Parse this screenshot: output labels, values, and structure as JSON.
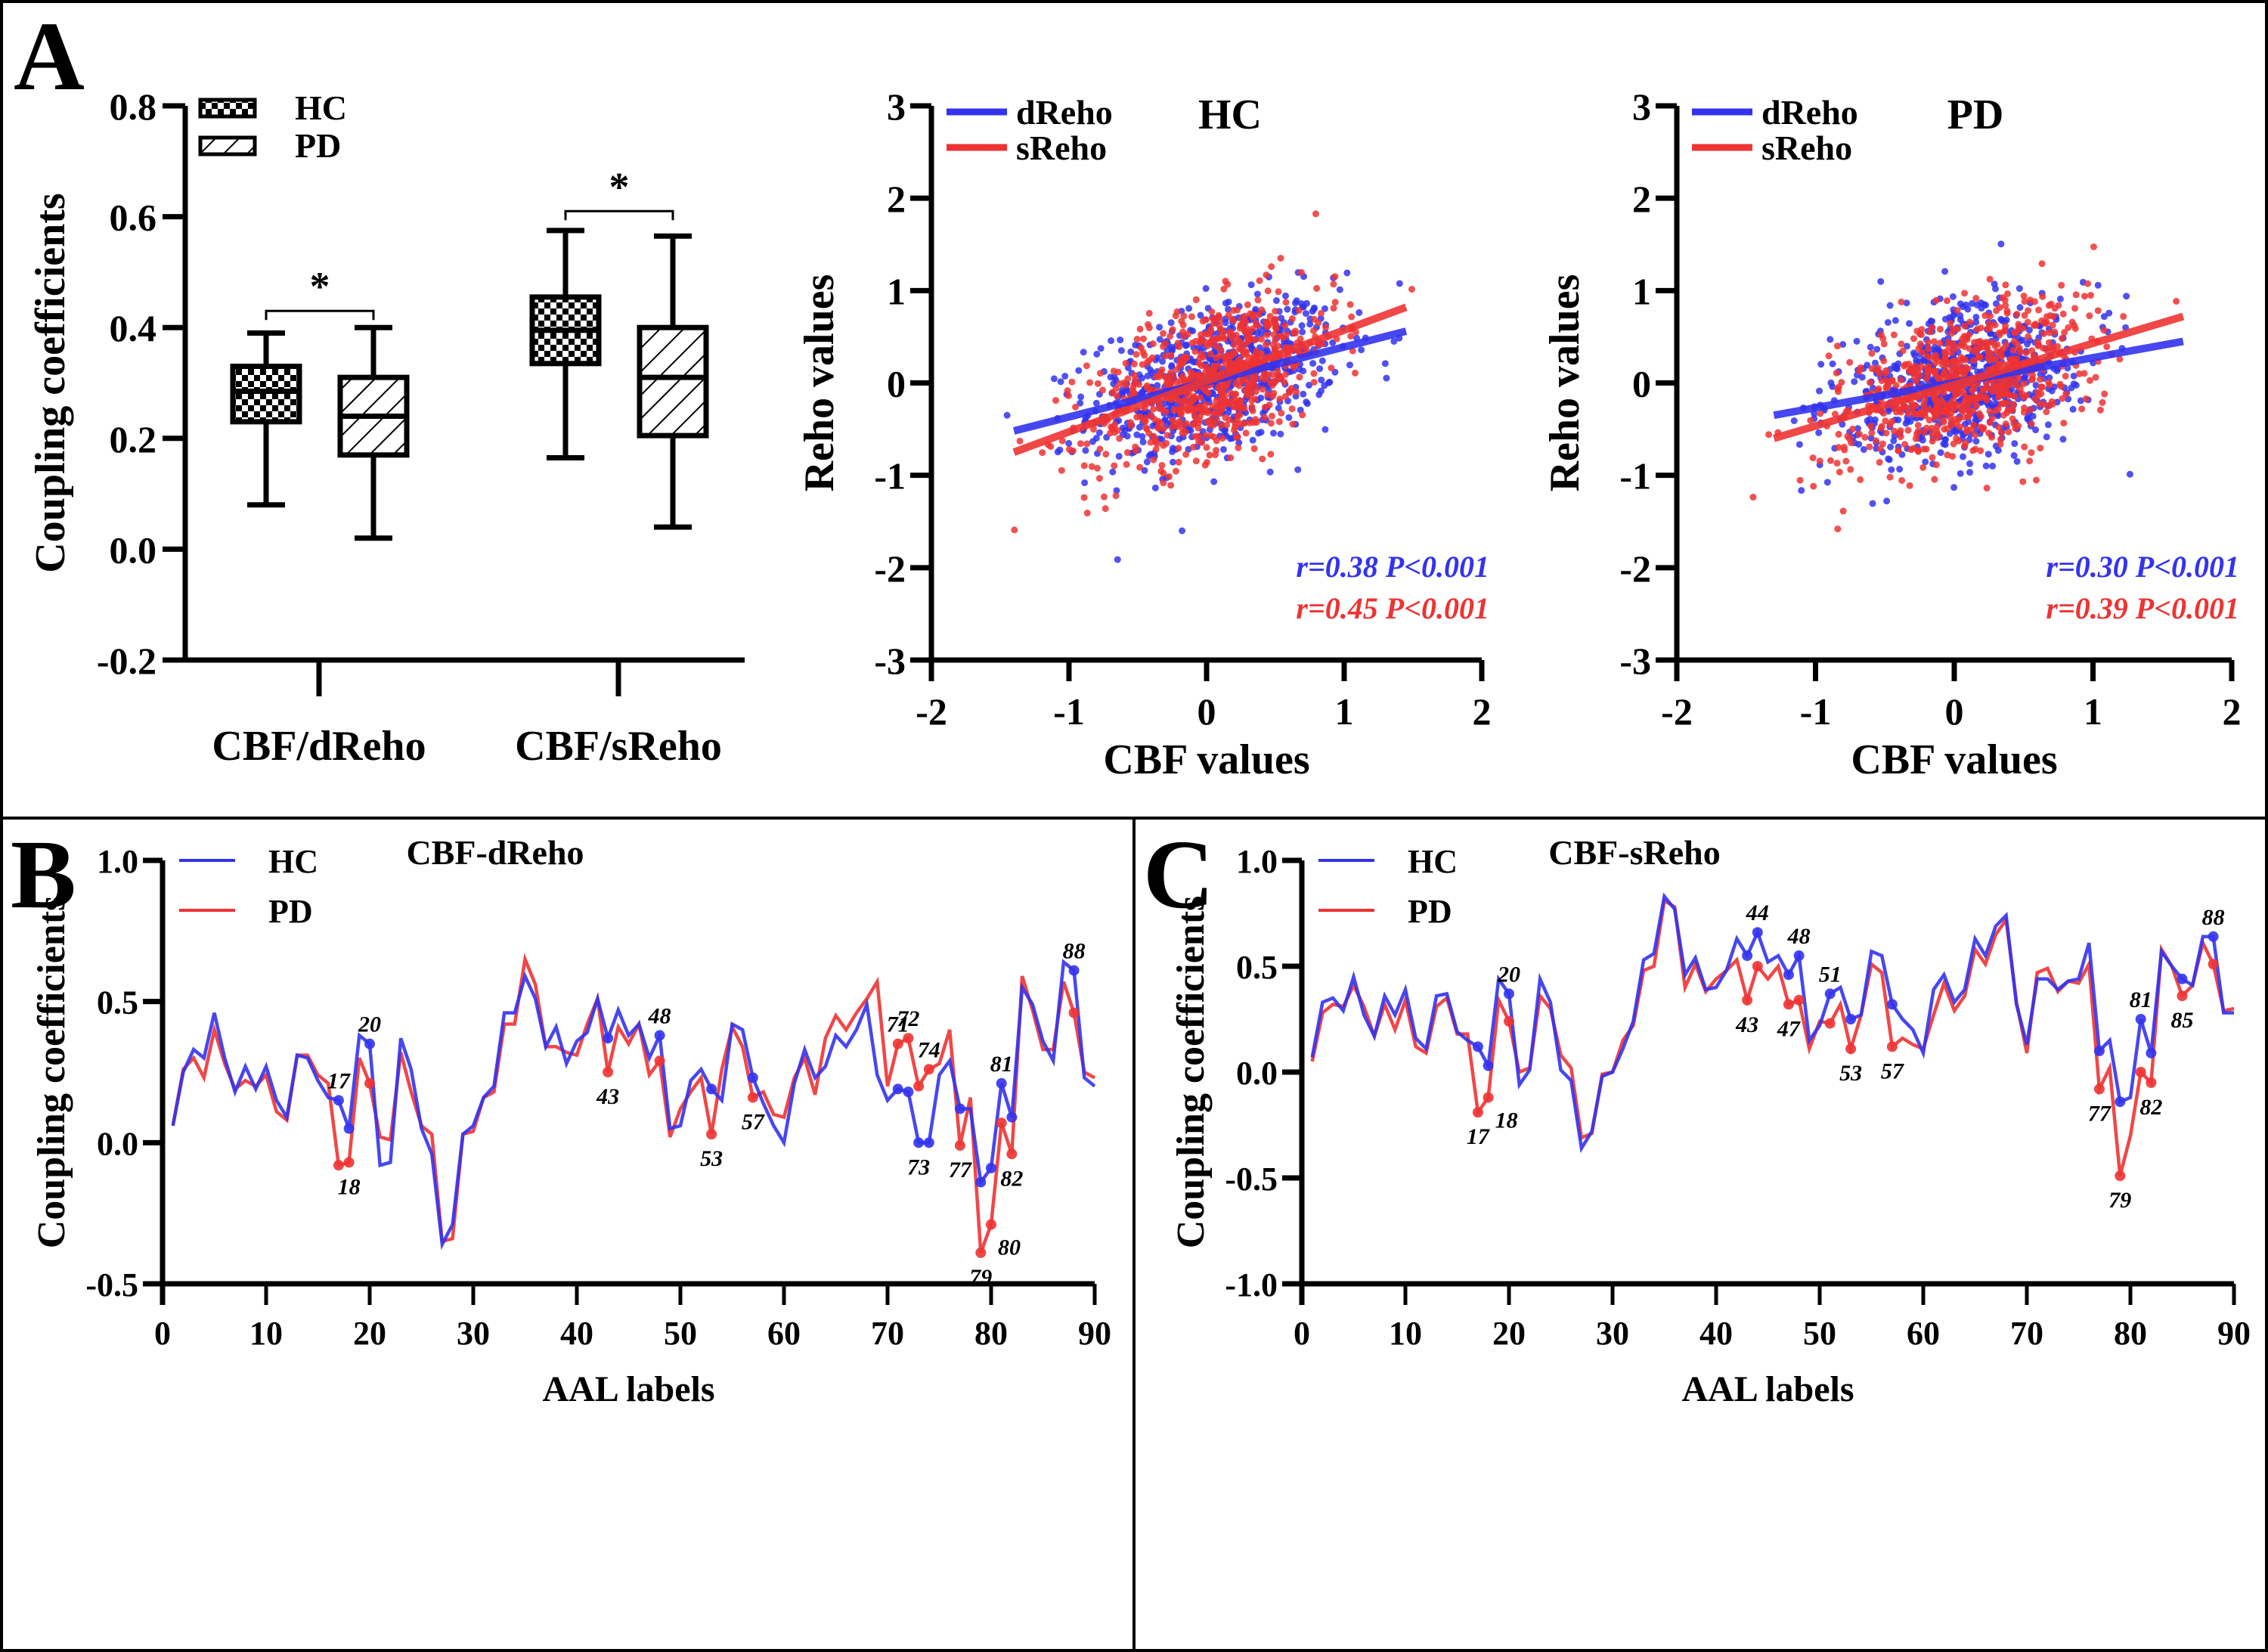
{
  "panels": {
    "A": {
      "letter": "A"
    },
    "B": {
      "letter": "B"
    },
    "C": {
      "letter": "C"
    }
  },
  "chart_data": [
    {
      "id": "A-box",
      "type": "box",
      "ylabel": "Coupling coefficients",
      "yticks": [
        "0.8",
        "0.6",
        "0.4",
        "0.2",
        "0.0",
        "-0.2"
      ],
      "ylim": [
        -0.2,
        0.8
      ],
      "categories": [
        "CBF/dReho",
        "CBF/sReho"
      ],
      "legend": [
        {
          "name": "HC",
          "pattern": "checker"
        },
        {
          "name": "PD",
          "pattern": "hatch"
        }
      ],
      "legend_position": "top-left",
      "significance": "*",
      "boxes": [
        {
          "category": "CBF/dReho",
          "group": "HC",
          "min": 0.08,
          "q1": 0.23,
          "median": 0.285,
          "q3": 0.33,
          "max": 0.39
        },
        {
          "category": "CBF/dReho",
          "group": "PD",
          "min": 0.02,
          "q1": 0.17,
          "median": 0.24,
          "q3": 0.31,
          "max": 0.4
        },
        {
          "category": "CBF/sReho",
          "group": "HC",
          "min": 0.165,
          "q1": 0.335,
          "median": 0.395,
          "q3": 0.455,
          "max": 0.575
        },
        {
          "category": "CBF/sReho",
          "group": "PD",
          "min": 0.04,
          "q1": 0.205,
          "median": 0.31,
          "q3": 0.4,
          "max": 0.565
        }
      ]
    },
    {
      "id": "A-scatter-HC",
      "type": "scatter",
      "title": "HC",
      "xlabel": "CBF values",
      "ylabel": "Reho values",
      "xlim": [
        -2,
        2
      ],
      "ylim": [
        -3,
        3
      ],
      "xticks": [
        "-2",
        "-1",
        "0",
        "1",
        "2"
      ],
      "yticks": [
        "3",
        "2",
        "1",
        "0",
        "-1",
        "-2",
        "-3"
      ],
      "legend_position": "top-left",
      "series": [
        {
          "name": "dReho",
          "color": "#3333ee",
          "fit": {
            "x": [
              -1.4,
              1.45
            ],
            "y": [
              -0.52,
              0.56
            ]
          },
          "stat": "r=0.38 P<0.001",
          "r": 0.38,
          "sd_x": 0.5,
          "sd_y": 0.5
        },
        {
          "name": "sReho",
          "color": "#ee3333",
          "fit": {
            "x": [
              -1.4,
              1.45
            ],
            "y": [
              -0.75,
              0.82
            ]
          },
          "stat": "r=0.45 P<0.001",
          "r": 0.45,
          "sd_x": 0.5,
          "sd_y": 0.55
        }
      ],
      "n_points_per_series": 700
    },
    {
      "id": "A-scatter-PD",
      "type": "scatter",
      "title": "PD",
      "xlabel": "CBF values",
      "ylabel": "Reho values",
      "xlim": [
        -2,
        2
      ],
      "ylim": [
        -3,
        3
      ],
      "xticks": [
        "-2",
        "-1",
        "0",
        "1",
        "2"
      ],
      "yticks": [
        "3",
        "2",
        "1",
        "0",
        "-1",
        "-2",
        "-3"
      ],
      "legend_position": "top-left",
      "series": [
        {
          "name": "dReho",
          "color": "#3333ee",
          "fit": {
            "x": [
              -1.3,
              1.65
            ],
            "y": [
              -0.35,
              0.45
            ]
          },
          "stat": "r=0.30 P<0.001",
          "r": 0.3,
          "sd_x": 0.5,
          "sd_y": 0.5
        },
        {
          "name": "sReho",
          "color": "#ee3333",
          "fit": {
            "x": [
              -1.3,
              1.65
            ],
            "y": [
              -0.6,
              0.72
            ]
          },
          "stat": "r=0.39 P<0.001",
          "r": 0.39,
          "sd_x": 0.5,
          "sd_y": 0.55
        }
      ],
      "n_points_per_series": 700
    },
    {
      "id": "B-line",
      "type": "line",
      "title": "CBF-dReho",
      "xlabel": "AAL labels",
      "ylabel": "Coupling coefficients",
      "xlim": [
        0,
        90
      ],
      "ylim": [
        -0.5,
        1.0
      ],
      "xticks": [
        "0",
        "10",
        "20",
        "30",
        "40",
        "50",
        "60",
        "70",
        "80",
        "90"
      ],
      "yticks": [
        "1.0",
        "0.5",
        "0.0",
        "-0.5"
      ],
      "legend_position": "top-left",
      "series": [
        {
          "name": "HC",
          "color": "#3333ee",
          "values": [
            0.06,
            0.25,
            0.33,
            0.3,
            0.46,
            0.3,
            0.18,
            0.27,
            0.19,
            0.27,
            0.15,
            0.09,
            0.31,
            0.3,
            0.22,
            0.16,
            0.15,
            0.05,
            0.38,
            0.35,
            -0.08,
            -0.07,
            0.37,
            0.26,
            0.05,
            -0.04,
            -0.36,
            -0.29,
            0.03,
            0.06,
            0.16,
            0.2,
            0.46,
            0.46,
            0.59,
            0.51,
            0.34,
            0.41,
            0.28,
            0.36,
            0.39,
            0.51,
            0.37,
            0.47,
            0.38,
            0.42,
            0.3,
            0.38,
            0.05,
            0.06,
            0.22,
            0.26,
            0.19,
            0.15,
            0.42,
            0.4,
            0.23,
            0.14,
            0.06,
            0.0,
            0.21,
            0.33,
            0.23,
            0.27,
            0.38,
            0.34,
            0.4,
            0.49,
            0.24,
            0.15,
            0.19,
            0.18,
            0.0,
            0.0,
            0.24,
            0.29,
            0.12,
            0.12,
            -0.14,
            -0.09,
            0.21,
            0.09,
            0.55,
            0.49,
            0.36,
            0.29,
            0.64,
            0.61,
            0.23,
            0.2
          ],
          "marked": [
            17,
            18,
            20,
            43,
            48,
            53,
            57,
            71,
            72,
            73,
            74,
            77,
            79,
            80,
            81,
            82,
            88
          ]
        },
        {
          "name": "PD",
          "color": "#ee3333",
          "values": [
            0.06,
            0.26,
            0.3,
            0.23,
            0.4,
            0.28,
            0.19,
            0.22,
            0.2,
            0.24,
            0.11,
            0.08,
            0.31,
            0.31,
            0.24,
            0.21,
            -0.08,
            -0.07,
            0.3,
            0.21,
            0.02,
            0.01,
            0.32,
            0.18,
            0.06,
            0.03,
            -0.35,
            -0.34,
            0.03,
            0.04,
            0.16,
            0.18,
            0.42,
            0.42,
            0.65,
            0.56,
            0.34,
            0.34,
            0.32,
            0.31,
            0.42,
            0.51,
            0.25,
            0.41,
            0.35,
            0.42,
            0.24,
            0.29,
            0.02,
            0.12,
            0.18,
            0.23,
            0.03,
            0.26,
            0.41,
            0.34,
            0.16,
            0.18,
            0.1,
            0.09,
            0.23,
            0.3,
            0.17,
            0.37,
            0.45,
            0.4,
            0.46,
            0.51,
            0.57,
            0.2,
            0.35,
            0.37,
            0.2,
            0.26,
            0.28,
            0.4,
            -0.01,
            0.16,
            -0.39,
            -0.29,
            0.07,
            -0.04,
            0.59,
            0.47,
            0.33,
            0.33,
            0.57,
            0.46,
            0.25,
            0.23
          ],
          "marked": [
            17,
            18,
            20,
            43,
            48,
            53,
            57,
            71,
            72,
            73,
            74,
            77,
            79,
            80,
            81,
            82,
            88
          ]
        }
      ],
      "annotations": [
        {
          "x": 17,
          "label": "17",
          "side": "above"
        },
        {
          "x": 18,
          "label": "18",
          "side": "below"
        },
        {
          "x": 20,
          "label": "20",
          "side": "above"
        },
        {
          "x": 43,
          "label": "43",
          "side": "below"
        },
        {
          "x": 48,
          "label": "48",
          "side": "above"
        },
        {
          "x": 53,
          "label": "53",
          "side": "below"
        },
        {
          "x": 57,
          "label": "57",
          "side": "below"
        },
        {
          "x": 71,
          "label": "71",
          "side": "above"
        },
        {
          "x": 72,
          "label": "72",
          "side": "above"
        },
        {
          "x": 73,
          "label": "73",
          "side": "below"
        },
        {
          "x": 74,
          "label": "74",
          "side": "above"
        },
        {
          "x": 77,
          "label": "77",
          "side": "below"
        },
        {
          "x": 79,
          "label": "79",
          "side": "below"
        },
        {
          "x": 80,
          "label": "80",
          "side": "right"
        },
        {
          "x": 81,
          "label": "81",
          "side": "above"
        },
        {
          "x": 82,
          "label": "82",
          "side": "below"
        },
        {
          "x": 88,
          "label": "88",
          "side": "above"
        }
      ]
    },
    {
      "id": "C-line",
      "type": "line",
      "title": "CBF-sReho",
      "xlabel": "AAL labels",
      "ylabel": "Coupling coefficients",
      "xlim": [
        0,
        90
      ],
      "ylim": [
        -1.0,
        1.0
      ],
      "xticks": [
        "0",
        "10",
        "20",
        "30",
        "40",
        "50",
        "60",
        "70",
        "80",
        "90"
      ],
      "yticks": [
        "1.0",
        "0.5",
        "0.0",
        "-0.5",
        "-1.0"
      ],
      "legend_position": "top-left",
      "series": [
        {
          "name": "HC",
          "color": "#3333ee",
          "values": [
            0.07,
            0.33,
            0.35,
            0.29,
            0.45,
            0.27,
            0.17,
            0.36,
            0.27,
            0.39,
            0.16,
            0.11,
            0.36,
            0.37,
            0.19,
            0.15,
            0.12,
            0.03,
            0.44,
            0.37,
            -0.06,
            0.01,
            0.44,
            0.33,
            0.01,
            -0.04,
            -0.36,
            -0.28,
            -0.02,
            0.0,
            0.11,
            0.24,
            0.53,
            0.56,
            0.83,
            0.77,
            0.46,
            0.54,
            0.39,
            0.4,
            0.48,
            0.63,
            0.55,
            0.66,
            0.52,
            0.55,
            0.46,
            0.55,
            0.15,
            0.22,
            0.37,
            0.4,
            0.25,
            0.27,
            0.57,
            0.55,
            0.32,
            0.25,
            0.2,
            0.09,
            0.39,
            0.46,
            0.33,
            0.39,
            0.63,
            0.55,
            0.69,
            0.74,
            0.32,
            0.13,
            0.44,
            0.44,
            0.39,
            0.43,
            0.44,
            0.61,
            0.1,
            0.15,
            -0.14,
            -0.12,
            0.25,
            0.09,
            0.57,
            0.5,
            0.44,
            0.41,
            0.64,
            0.64,
            0.28,
            0.28
          ],
          "marked": [
            17,
            18,
            20,
            43,
            44,
            47,
            48,
            51,
            53,
            57,
            77,
            79,
            81,
            82,
            85,
            88
          ]
        },
        {
          "name": "PD",
          "color": "#ee3333",
          "values": [
            0.05,
            0.28,
            0.32,
            0.31,
            0.41,
            0.31,
            0.17,
            0.32,
            0.2,
            0.34,
            0.12,
            0.09,
            0.31,
            0.35,
            0.18,
            0.18,
            -0.19,
            -0.12,
            0.34,
            0.24,
            0.0,
            0.02,
            0.36,
            0.3,
            0.08,
            0.02,
            -0.31,
            -0.29,
            -0.01,
            0.0,
            0.15,
            0.22,
            0.48,
            0.5,
            0.81,
            0.78,
            0.4,
            0.51,
            0.38,
            0.44,
            0.48,
            0.53,
            0.34,
            0.5,
            0.44,
            0.5,
            0.32,
            0.34,
            0.11,
            0.24,
            0.23,
            0.32,
            0.11,
            0.27,
            0.51,
            0.47,
            0.12,
            0.16,
            0.13,
            0.11,
            0.27,
            0.42,
            0.29,
            0.36,
            0.58,
            0.51,
            0.65,
            0.72,
            0.33,
            0.09,
            0.47,
            0.49,
            0.38,
            0.43,
            0.42,
            0.51,
            -0.08,
            0.02,
            -0.49,
            -0.3,
            0.0,
            -0.05,
            0.58,
            0.5,
            0.36,
            0.41,
            0.61,
            0.51,
            0.29,
            0.3
          ],
          "marked": [
            17,
            18,
            20,
            43,
            44,
            47,
            48,
            51,
            53,
            57,
            77,
            79,
            81,
            82,
            85,
            88
          ]
        }
      ],
      "annotations": [
        {
          "x": 17,
          "label": "17",
          "side": "below"
        },
        {
          "x": 18,
          "label": "18",
          "side": "right"
        },
        {
          "x": 20,
          "label": "20",
          "side": "above"
        },
        {
          "x": 43,
          "label": "43",
          "side": "below"
        },
        {
          "x": 44,
          "label": "44",
          "side": "above"
        },
        {
          "x": 47,
          "label": "47",
          "side": "below"
        },
        {
          "x": 48,
          "label": "48",
          "side": "above"
        },
        {
          "x": 51,
          "label": "51",
          "side": "above"
        },
        {
          "x": 53,
          "label": "53",
          "side": "below"
        },
        {
          "x": 57,
          "label": "57",
          "side": "below"
        },
        {
          "x": 77,
          "label": "77",
          "side": "below"
        },
        {
          "x": 79,
          "label": "79",
          "side": "below"
        },
        {
          "x": 81,
          "label": "81",
          "side": "above"
        },
        {
          "x": 82,
          "label": "82",
          "side": "below"
        },
        {
          "x": 85,
          "label": "85",
          "side": "below"
        },
        {
          "x": 88,
          "label": "88",
          "side": "above"
        }
      ]
    }
  ]
}
